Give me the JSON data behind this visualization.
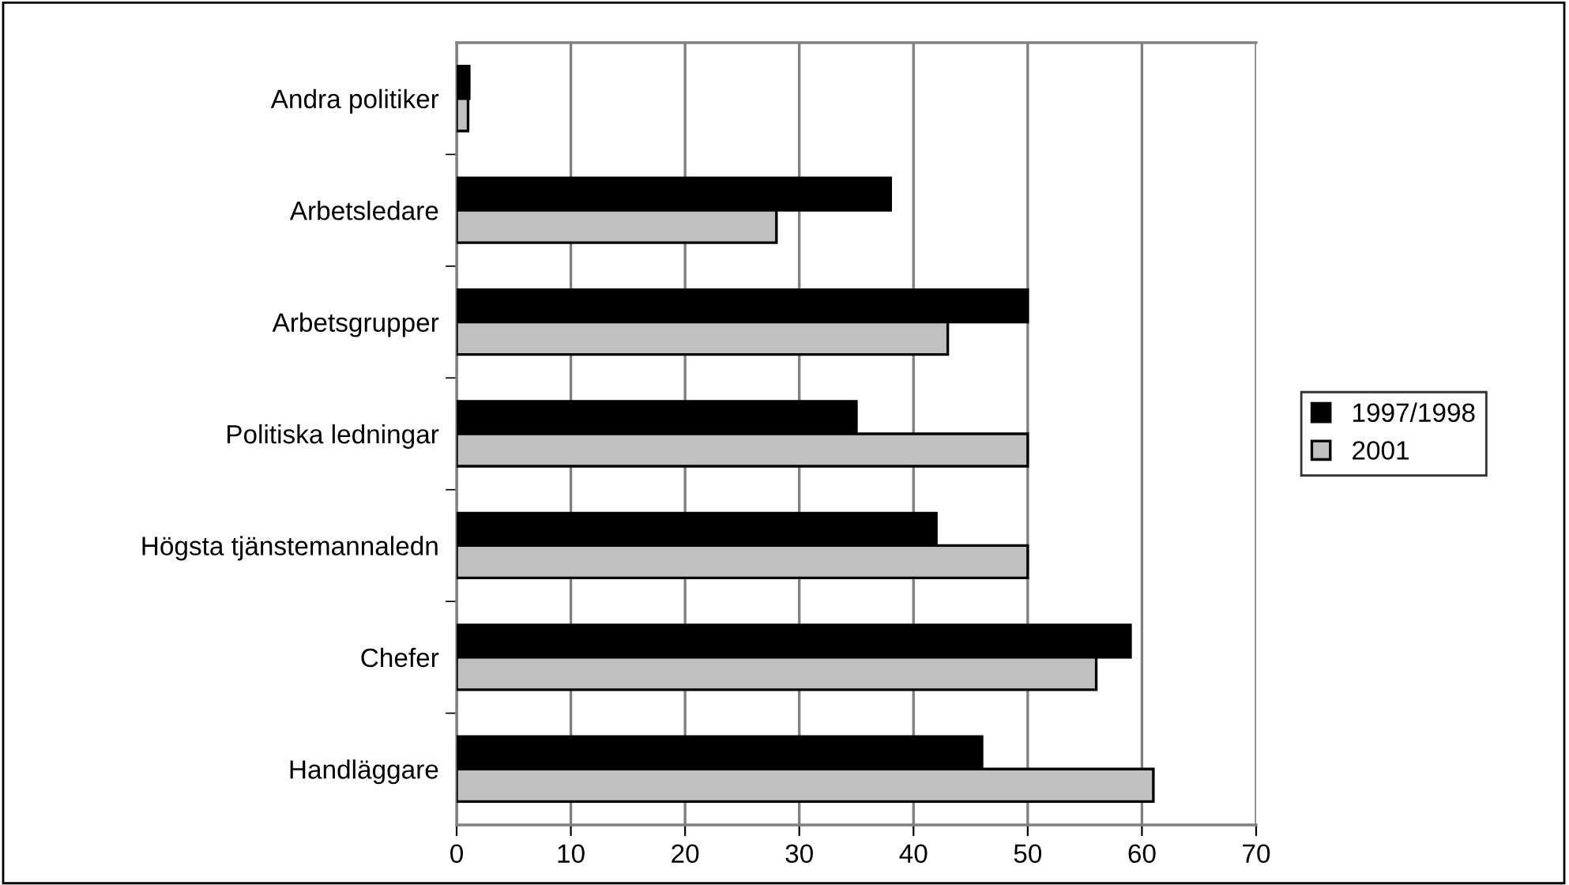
{
  "chart_data": {
    "type": "bar",
    "orientation": "horizontal",
    "categories": [
      "Andra politiker",
      "Arbetsledare",
      "Arbetsgrupper",
      "Politiska ledningar",
      "Högsta tjänstemannaledn",
      "Chefer",
      "Handläggare"
    ],
    "series": [
      {
        "name": "1997/1998",
        "color": "#000000",
        "values": [
          1.1,
          38,
          50,
          35,
          42,
          59,
          46
        ]
      },
      {
        "name": "2001",
        "color": "#c0c0c0",
        "values": [
          1,
          28,
          43,
          50,
          50,
          56,
          61
        ]
      }
    ],
    "xlim": [
      0,
      70
    ],
    "xticks": [
      0,
      10,
      20,
      30,
      40,
      50,
      60,
      70
    ],
    "grid": "x",
    "legend": "right"
  }
}
